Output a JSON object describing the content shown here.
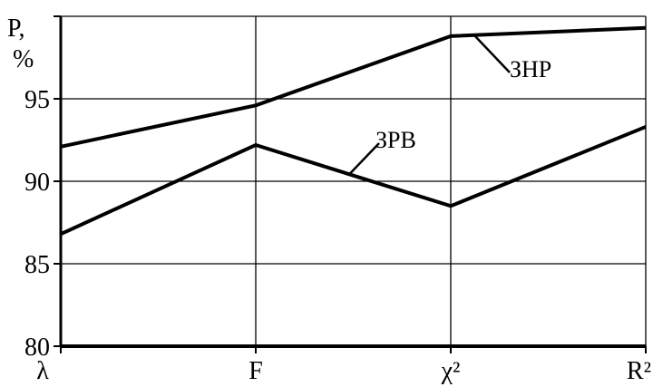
{
  "chart_data": {
    "type": "line",
    "ylabel_line1": "P,",
    "ylabel_line2": "%",
    "categories": [
      "λ",
      "F",
      "χ²",
      "R²"
    ],
    "ylim": [
      80,
      100
    ],
    "yticks": [
      80,
      85,
      90,
      95
    ],
    "grid": true,
    "series": [
      {
        "name": "ЗНР",
        "values": [
          92.1,
          94.6,
          98.8,
          99.3
        ]
      },
      {
        "name": "ЗРВ",
        "values": [
          86.8,
          92.2,
          88.5,
          93.3
        ]
      }
    ]
  }
}
